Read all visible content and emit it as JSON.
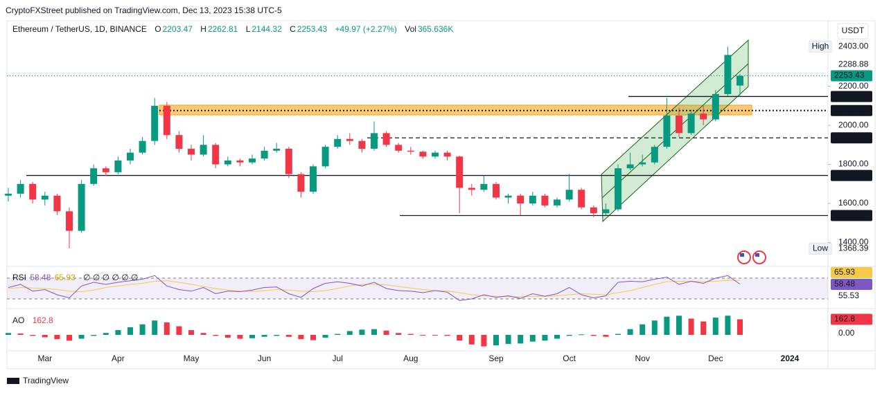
{
  "header": {
    "publisher": "CryptoFXStreet published on TradingView.com, Dec 13, 2023 15:38 UTC-5",
    "brand": "TradingView"
  },
  "chart_data": {
    "type": "candlestick",
    "title": "Ethereum / TetherUS, 1D, BINANCE",
    "ohlc_keys": [
      "O",
      "H",
      "L",
      "C"
    ],
    "change": "+49.97 (+2.27%)",
    "volume_key": "Vol",
    "volume": "365.636K",
    "currency": "USDT",
    "categories": [
      null,
      null,
      null,
      "Mar",
      null,
      null,
      null,
      null,
      null,
      "Apr",
      null,
      null,
      null,
      null,
      null,
      "May",
      null,
      null,
      null,
      null,
      null,
      "Jun",
      null,
      null,
      null,
      null,
      null,
      "Jul",
      null,
      null,
      null,
      null,
      null,
      "Aug",
      null,
      null,
      null,
      null,
      null,
      null,
      "Sep",
      null,
      null,
      null,
      null,
      null,
      "Oct",
      null,
      null,
      null,
      null,
      null,
      "Nov",
      null,
      null,
      null,
      null,
      null,
      "Dec",
      null,
      null
    ],
    "x_end_label": "2024",
    "open": [
      1640,
      1650,
      1700,
      1620,
      1640,
      1560,
      1460,
      1700,
      1780,
      1760,
      1820,
      1860,
      1920,
      2100,
      1950,
      1880,
      1850,
      1900,
      1800,
      1820,
      1810,
      1830,
      1870,
      1880,
      1750,
      1660,
      1790,
      1890,
      1930,
      1920,
      1880,
      1960,
      1900,
      1870,
      1865,
      1840,
      1860,
      1840,
      1680,
      1670,
      1700,
      1630,
      1640,
      1600,
      1640,
      1590,
      1620,
      1670,
      1580,
      1550,
      1570,
      1780,
      1800,
      1810,
      1890,
      2050,
      1960,
      2060,
      2030,
      2160,
      2203.47
    ],
    "high": [
      1680,
      1720,
      1710,
      1660,
      1650,
      1580,
      1720,
      1800,
      1790,
      1840,
      1880,
      1940,
      2140,
      2120,
      1970,
      1900,
      1950,
      1910,
      1840,
      1830,
      1850,
      1890,
      1910,
      1890,
      1760,
      1800,
      1900,
      1950,
      1960,
      1930,
      2020,
      1970,
      1910,
      1890,
      1870,
      1870,
      1870,
      1845,
      1700,
      1740,
      1710,
      1650,
      1650,
      1660,
      1650,
      1630,
      1750,
      1680,
      1590,
      1600,
      1800,
      1860,
      1850,
      1900,
      2140,
      2090,
      2080,
      2100,
      2180,
      2403,
      2262.81
    ],
    "low": [
      1610,
      1630,
      1600,
      1590,
      1540,
      1370,
      1450,
      1690,
      1740,
      1750,
      1800,
      1850,
      1900,
      1930,
      1860,
      1820,
      1840,
      1780,
      1790,
      1790,
      1800,
      1820,
      1860,
      1730,
      1630,
      1650,
      1780,
      1880,
      1900,
      1860,
      1870,
      1890,
      1860,
      1850,
      1830,
      1830,
      1820,
      1550,
      1640,
      1660,
      1620,
      1600,
      1540,
      1590,
      1580,
      1580,
      1610,
      1570,
      1530,
      1540,
      1560,
      1770,
      1790,
      1800,
      1880,
      1940,
      1950,
      2000,
      2020,
      2150,
      2144.32
    ],
    "close": [
      1650,
      1700,
      1620,
      1640,
      1560,
      1460,
      1700,
      1780,
      1760,
      1820,
      1860,
      1920,
      2100,
      1950,
      1880,
      1850,
      1900,
      1800,
      1820,
      1810,
      1830,
      1870,
      1880,
      1750,
      1660,
      1790,
      1890,
      1930,
      1920,
      1880,
      1960,
      1900,
      1870,
      1865,
      1840,
      1860,
      1840,
      1680,
      1670,
      1700,
      1630,
      1640,
      1600,
      1640,
      1590,
      1620,
      1670,
      1580,
      1550,
      1570,
      1780,
      1800,
      1810,
      1890,
      2050,
      1960,
      2060,
      2030,
      2160,
      2360,
      2253.43
    ],
    "up_color": "#089981",
    "down_color": "#f23645",
    "ylim": [
      1278,
      2535
    ],
    "yticks": [
      {
        "value": 1400,
        "label": "1400.00"
      },
      {
        "value": 1600,
        "label": "1600.00"
      },
      {
        "value": 1800,
        "label": "1800.00"
      },
      {
        "value": 2000,
        "label": "2000.00"
      },
      {
        "value": 2200,
        "label": "2200.00"
      }
    ],
    "grid": false,
    "levels": [
      {
        "value": 2288.88,
        "label": "2288.88",
        "style": "none"
      },
      {
        "value": 2147.44,
        "label": "2147.44",
        "style": "solid"
      },
      {
        "value": 2075.73,
        "label": "2075.73",
        "style": "dotted"
      },
      {
        "value": 1935.67,
        "label": "1935.67",
        "style": "dashed"
      },
      {
        "value": 1743.33,
        "label": "1743.33",
        "style": "solid"
      },
      {
        "value": 1538.22,
        "label": "1538.22",
        "style": "solid"
      }
    ],
    "extremes": [
      {
        "name": "High",
        "value": 2403,
        "label": "2403.00"
      },
      {
        "name": "Low",
        "value": 1368.39,
        "label": "1368.39"
      }
    ],
    "rsi": {
      "name": "RSI",
      "color": "#7e57c2",
      "values": [
        52,
        58,
        45,
        48,
        38,
        32,
        55,
        62,
        58,
        62,
        65,
        68,
        75,
        55,
        48,
        45,
        52,
        40,
        45,
        44,
        47,
        52,
        53,
        40,
        33,
        50,
        60,
        63,
        60,
        55,
        62,
        50,
        46,
        45,
        42,
        46,
        43,
        27,
        30,
        38,
        33,
        36,
        31,
        40,
        35,
        40,
        52,
        38,
        32,
        36,
        62,
        64,
        63,
        68,
        72,
        58,
        64,
        60,
        70,
        75,
        58.48
      ],
      "ma_color": "#f7c948",
      "ma": [
        50,
        52,
        51,
        50,
        48,
        45,
        44,
        47,
        52,
        55,
        58,
        60,
        64,
        65,
        62,
        58,
        54,
        50,
        47,
        45,
        44,
        46,
        48,
        47,
        45,
        44,
        46,
        50,
        55,
        58,
        58,
        57,
        54,
        51,
        48,
        46,
        45,
        42,
        38,
        36,
        35,
        34,
        34,
        35,
        35,
        36,
        38,
        40,
        39,
        38,
        42,
        46,
        52,
        58,
        63,
        64,
        64,
        63,
        64,
        66,
        65.93
      ],
      "placeholders": "∅ ∅ ∅ ∅ ∅ ∅",
      "scale_label": 55.53,
      "ylim": [
        10,
        90
      ],
      "bands": [
        30,
        70
      ]
    },
    "ao": {
      "name": "AO",
      "values": [
        20,
        15,
        -10,
        -25,
        -45,
        -60,
        -40,
        -10,
        20,
        50,
        80,
        110,
        150,
        130,
        90,
        50,
        20,
        -10,
        -30,
        -40,
        -35,
        -20,
        -10,
        -20,
        -45,
        -55,
        -30,
        10,
        40,
        55,
        60,
        45,
        20,
        10,
        0,
        -5,
        -10,
        -60,
        -100,
        -120,
        -110,
        -95,
        -90,
        -70,
        -60,
        -40,
        -10,
        5,
        -10,
        -20,
        10,
        60,
        110,
        150,
        190,
        200,
        170,
        140,
        180,
        200,
        162.8
      ],
      "up_color": "#089981",
      "down_color": "#f23645",
      "ylim": [
        -130,
        260
      ],
      "yticks": [
        {
          "value": 0,
          "label": "0.00"
        }
      ]
    }
  }
}
